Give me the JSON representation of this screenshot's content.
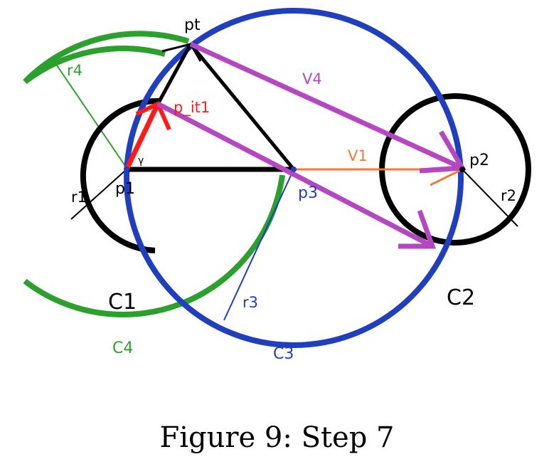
{
  "colors": {
    "black": "#000000",
    "green": "#2ca02c",
    "blue": "#1f3fbf",
    "magenta": "#b547c2",
    "red": "#ff1a1a",
    "orange": "#f07a3c"
  },
  "labels": {
    "pt": "pt",
    "p_it1": "p_it1",
    "gamma": "γ",
    "p1": "p1",
    "p2": "p2",
    "p3": "p3",
    "r1": "r1",
    "r2": "r2",
    "r3": "r3",
    "r4": "r4",
    "v1": "V1",
    "v4": "V4",
    "c1": "C1",
    "c2": "C2",
    "c3": "C3",
    "c4": "C4"
  },
  "caption": "Figure 9: Step 7"
}
